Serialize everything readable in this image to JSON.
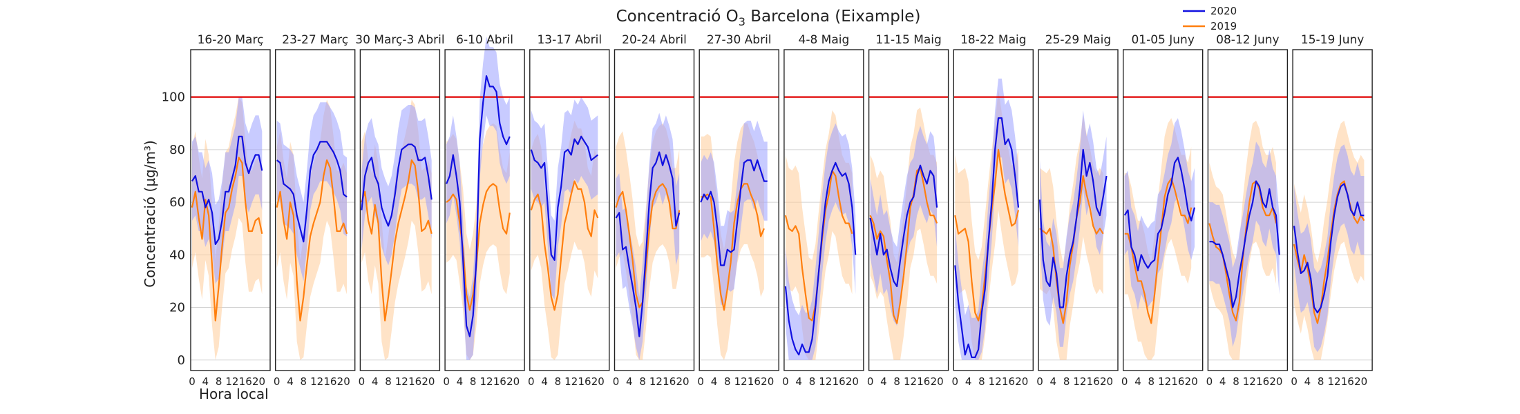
{
  "chart_data": {
    "type": "line",
    "title_main": "Concentració O",
    "title_sub": "3",
    "title_rest": " Barcelona (Eixample)",
    "ylabel": "Concentració (µg/m³)",
    "xlabel": "Hora local",
    "ylim": [
      -4,
      118
    ],
    "yticks": [
      "0",
      "20",
      "40",
      "60",
      "80",
      "100"
    ],
    "xticks": [
      "0",
      "4",
      "8",
      "12",
      "16",
      "20"
    ],
    "threshold": 100,
    "grid": true,
    "legend_position": "top-right",
    "colors": {
      "s2020": "#1010e0",
      "s2019": "#ff7f0e",
      "band2020": "#9aa0ff",
      "band2019": "#ffcc99",
      "threshold": "#e00000"
    },
    "series": [
      {
        "name": "2020",
        "color_key": "s2020"
      },
      {
        "name": "2019",
        "color_key": "s2019"
      }
    ],
    "panels": [
      {
        "title": "16-20 Març",
        "s2020": [
          68,
          70,
          64,
          64,
          58,
          61,
          56,
          44,
          46,
          53,
          64,
          64,
          69,
          74,
          85,
          85,
          75,
          71,
          75,
          78,
          78,
          72
        ],
        "s2019": [
          58,
          64,
          54,
          46,
          61,
          55,
          36,
          15,
          28,
          43,
          56,
          58,
          65,
          70,
          77,
          75,
          60,
          49,
          49,
          53,
          54,
          48
        ]
      },
      {
        "title": "23-27 Març",
        "s2020": [
          76,
          75,
          67,
          66,
          65,
          63,
          55,
          50,
          45,
          57,
          72,
          78,
          80,
          83,
          83,
          83,
          81,
          79,
          76,
          72,
          63,
          62
        ],
        "s2019": [
          58,
          64,
          53,
          46,
          60,
          55,
          30,
          15,
          24,
          36,
          47,
          52,
          56,
          60,
          70,
          76,
          73,
          62,
          49,
          49,
          52,
          48
        ]
      },
      {
        "title": "30 Març-3 Abril",
        "s2020": [
          57,
          70,
          75,
          77,
          70,
          67,
          58,
          54,
          51,
          55,
          63,
          73,
          80,
          81,
          82,
          82,
          81,
          76,
          76,
          77,
          70,
          61
        ],
        "s2019": [
          60,
          64,
          53,
          48,
          59,
          52,
          30,
          15,
          24,
          34,
          45,
          52,
          57,
          62,
          68,
          76,
          74,
          64,
          49,
          50,
          53,
          48
        ]
      },
      {
        "title": "6-10 Abril",
        "s2020": [
          67,
          70,
          78,
          70,
          60,
          38,
          13,
          9,
          17,
          38,
          84,
          98,
          108,
          104,
          104,
          102,
          90,
          85,
          82,
          85
        ],
        "s2019": [
          60,
          61,
          63,
          61,
          52,
          42,
          25,
          19,
          25,
          36,
          52,
          59,
          64,
          66,
          67,
          66,
          57,
          50,
          48,
          56
        ]
      },
      {
        "title": "13-17 Abril",
        "s2020": [
          80,
          76,
          75,
          73,
          75,
          58,
          40,
          38,
          58,
          66,
          79,
          80,
          78,
          84,
          82,
          85,
          83,
          81,
          76,
          77,
          78
        ],
        "s2019": [
          57,
          61,
          63,
          58,
          44,
          35,
          24,
          19,
          25,
          39,
          52,
          57,
          63,
          68,
          65,
          65,
          60,
          50,
          47,
          57,
          54
        ]
      },
      {
        "title": "20-24 Abril",
        "s2020": [
          54,
          56,
          42,
          43,
          35,
          28,
          20,
          9,
          22,
          40,
          60,
          73,
          75,
          79,
          74,
          78,
          74,
          69,
          51,
          56
        ],
        "s2019": [
          58,
          62,
          64,
          57,
          48,
          38,
          25,
          20,
          22,
          35,
          50,
          60,
          64,
          66,
          67,
          65,
          60,
          50,
          50,
          57
        ]
      },
      {
        "title": "27-30 Abril",
        "s2020": [
          60,
          63,
          61,
          64,
          60,
          50,
          36,
          36,
          42,
          41,
          42,
          53,
          65,
          75,
          76,
          76,
          72,
          76,
          72,
          68,
          68
        ],
        "s2019": [
          62,
          62,
          63,
          62,
          50,
          36,
          25,
          19,
          27,
          37,
          52,
          60,
          65,
          67,
          67,
          63,
          60,
          55,
          47,
          50
        ]
      },
      {
        "title": "4-8 Maig",
        "s2020": [
          28,
          15,
          8,
          4,
          2,
          6,
          3,
          3,
          8,
          20,
          34,
          48,
          60,
          68,
          72,
          75,
          72,
          70,
          71,
          67,
          58,
          40
        ],
        "s2019": [
          55,
          50,
          49,
          51,
          48,
          35,
          25,
          16,
          15,
          21,
          34,
          46,
          57,
          63,
          72,
          70,
          62,
          55,
          52,
          52,
          48
        ]
      },
      {
        "title": "11-15 Maig",
        "s2020": [
          54,
          47,
          40,
          48,
          40,
          42,
          35,
          30,
          28,
          38,
          47,
          55,
          60,
          62,
          70,
          74,
          70,
          67,
          72,
          70,
          58
        ],
        "s2019": [
          55,
          52,
          46,
          49,
          47,
          38,
          30,
          17,
          14,
          22,
          32,
          44,
          58,
          63,
          72,
          73,
          67,
          60,
          55,
          55,
          52
        ]
      },
      {
        "title": "18-22 Maig",
        "s2020": [
          36,
          22,
          12,
          2,
          6,
          1,
          1,
          4,
          18,
          27,
          45,
          60,
          80,
          92,
          92,
          82,
          84,
          80,
          70,
          58
        ],
        "s2019": [
          55,
          48,
          49,
          50,
          45,
          30,
          18,
          15,
          20,
          32,
          45,
          57,
          67,
          80,
          71,
          63,
          57,
          51,
          52,
          57
        ]
      },
      {
        "title": "25-29 Maig",
        "s2020": [
          61,
          38,
          30,
          28,
          39,
          33,
          20,
          20,
          32,
          40,
          45,
          54,
          65,
          80,
          70,
          75,
          68,
          58,
          55,
          62,
          70
        ],
        "s2019": [
          50,
          49,
          48,
          50,
          43,
          30,
          20,
          14,
          22,
          36,
          44,
          54,
          60,
          70,
          63,
          58,
          51,
          48,
          50,
          48
        ]
      },
      {
        "title": "01-05 Juny",
        "s2020": [
          55,
          57,
          43,
          40,
          34,
          40,
          37,
          35,
          37,
          38,
          48,
          50,
          56,
          63,
          67,
          75,
          77,
          72,
          65,
          57,
          53,
          58
        ],
        "s2019": [
          48,
          48,
          43,
          36,
          30,
          30,
          25,
          18,
          14,
          25,
          38,
          50,
          62,
          67,
          69,
          65,
          60,
          55,
          55,
          52,
          58
        ]
      },
      {
        "title": "08-12 Juny",
        "s2020": [
          45,
          45,
          44,
          44,
          40,
          35,
          30,
          20,
          24,
          33,
          40,
          48,
          55,
          60,
          68,
          66,
          60,
          58,
          65,
          58,
          55,
          40
        ],
        "s2019": [
          52,
          47,
          43,
          42,
          40,
          33,
          25,
          18,
          15,
          22,
          38,
          50,
          60,
          67,
          68,
          65,
          58,
          55,
          55,
          58,
          52
        ]
      },
      {
        "title": "15-19 Juny",
        "s2020": [
          51,
          41,
          33,
          34,
          37,
          31,
          20,
          18,
          20,
          25,
          32,
          45,
          55,
          62,
          66,
          67,
          63,
          57,
          55,
          60,
          55,
          55
        ],
        "s2019": [
          44,
          38,
          33,
          40,
          35,
          28,
          18,
          14,
          20,
          30,
          38,
          48,
          57,
          63,
          67,
          68,
          63,
          58,
          54,
          52,
          55,
          53
        ]
      }
    ]
  }
}
